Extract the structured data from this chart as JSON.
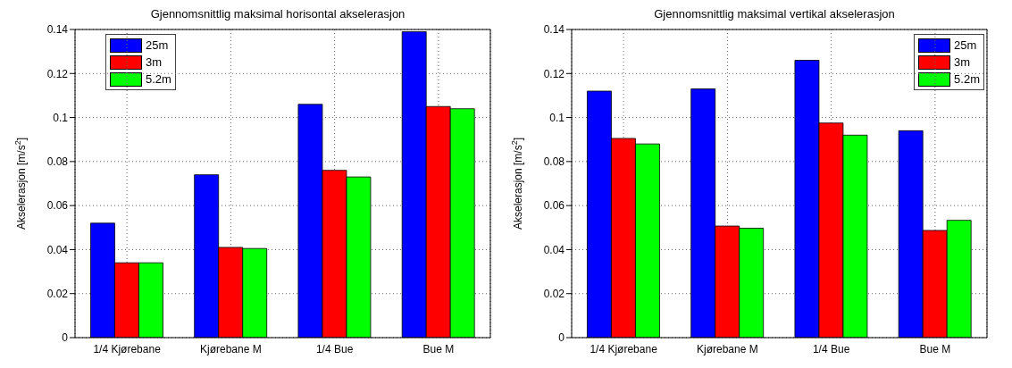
{
  "chart_data": [
    {
      "type": "bar",
      "title": "Gjennomsnittlig maksimal horisontal akselerasjon",
      "ylabel": "Akselerasjon [m/s$^{2}$]",
      "categories": [
        "1/4 Kjørebane",
        "Kjørebane M",
        "1/4 Bue",
        "Bue M"
      ],
      "series": [
        {
          "name": "25m",
          "color": "#0000ff",
          "values": [
            0.052,
            0.074,
            0.106,
            0.139
          ]
        },
        {
          "name": "3m",
          "color": "#ff0000",
          "values": [
            0.034,
            0.041,
            0.076,
            0.105
          ]
        },
        {
          "name": "5.2m",
          "color": "#00ff00",
          "values": [
            0.034,
            0.0405,
            0.073,
            0.104
          ]
        }
      ],
      "ylim": [
        0,
        0.14
      ],
      "yticks": [
        0,
        0.02,
        0.04,
        0.06,
        0.08,
        0.1,
        0.12,
        0.14
      ],
      "grid": true,
      "legend": "top left"
    },
    {
      "type": "bar",
      "title": "Gjennomsnittlig maksimal vertikal akselerasjon",
      "ylabel": "Akselerasjon [m/s$^{2}$]",
      "categories": [
        "1/4 Kjørebane",
        "Kjørebane M",
        "1/4 Bue",
        "Bue M"
      ],
      "series": [
        {
          "name": "25m",
          "color": "#0000ff",
          "values": [
            0.112,
            0.113,
            0.126,
            0.094
          ]
        },
        {
          "name": "3m",
          "color": "#ff0000",
          "values": [
            0.0905,
            0.0507,
            0.0975,
            0.0487
          ]
        },
        {
          "name": "5.2m",
          "color": "#00ff00",
          "values": [
            0.088,
            0.0497,
            0.092,
            0.0533
          ]
        }
      ],
      "ylim": [
        0,
        0.14
      ],
      "yticks": [
        0,
        0.02,
        0.04,
        0.06,
        0.08,
        0.1,
        0.12,
        0.14
      ],
      "grid": true,
      "legend": "top right"
    }
  ]
}
